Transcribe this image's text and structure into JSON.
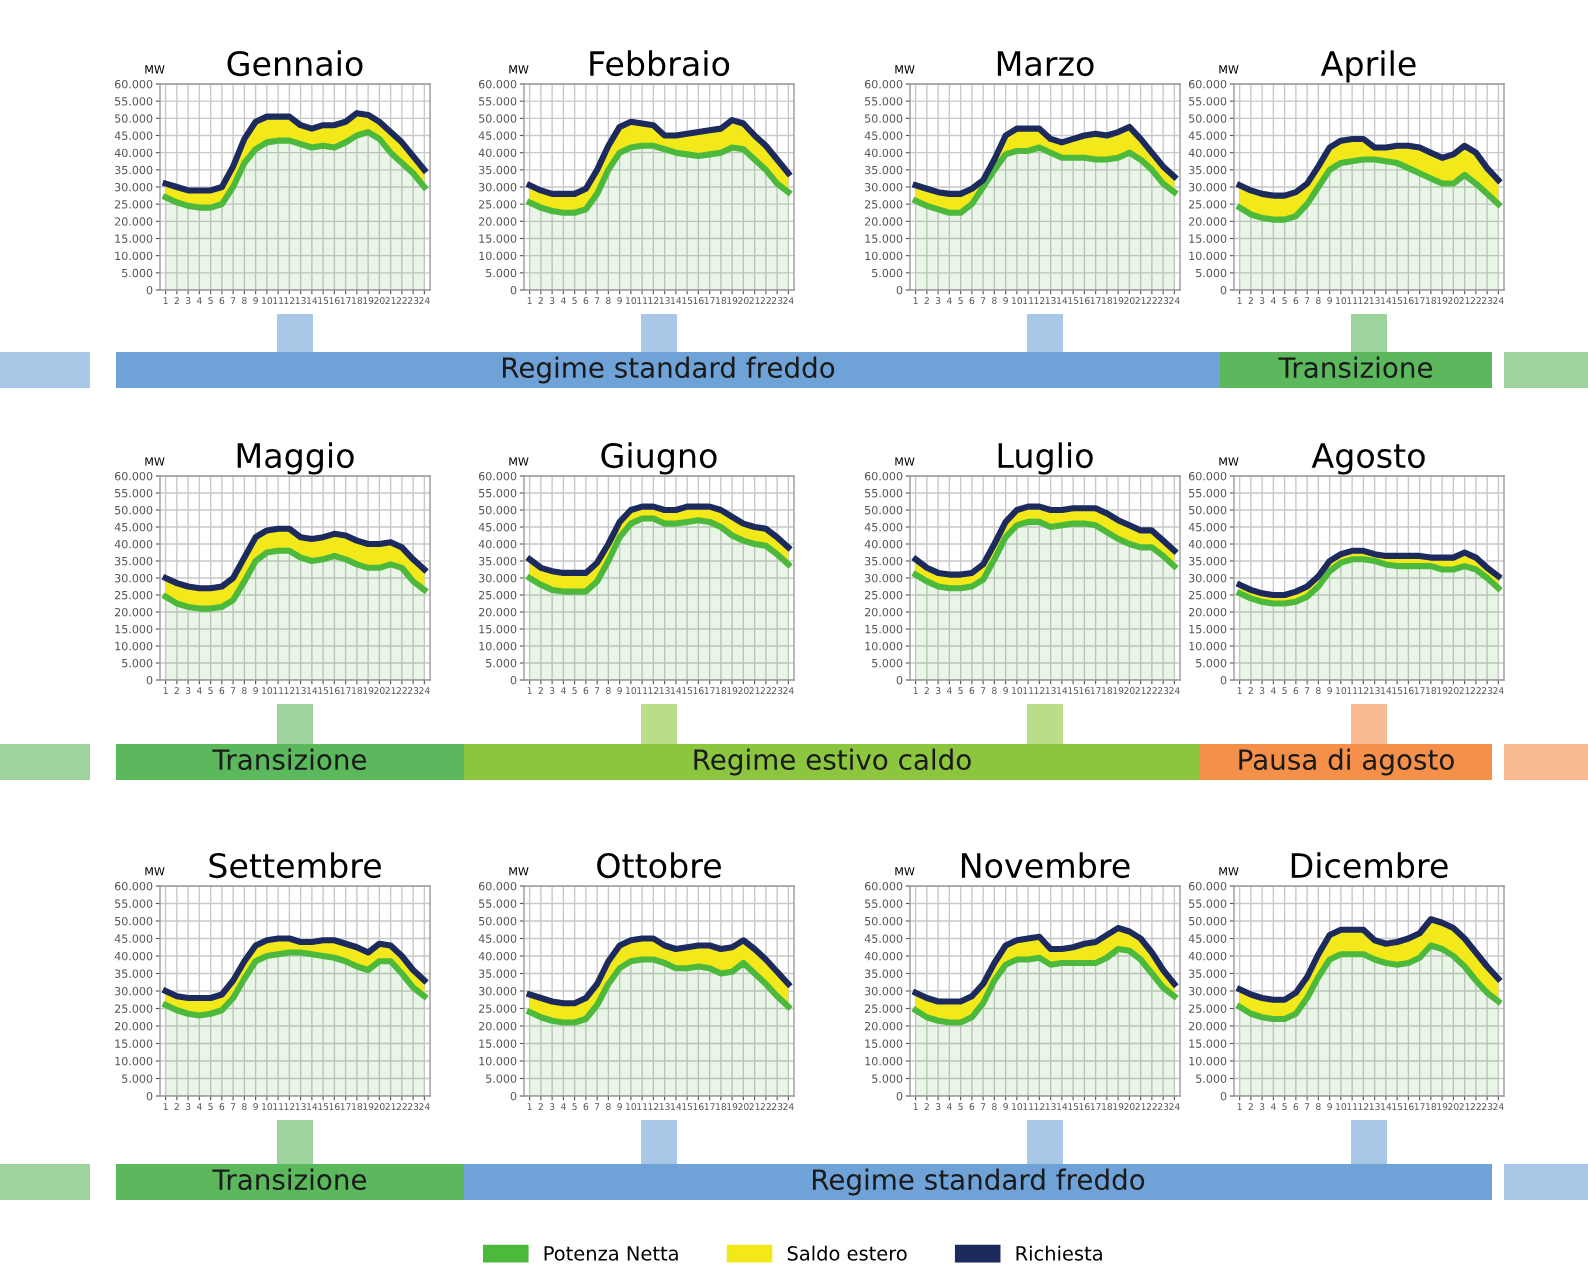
{
  "chart_data": [
    {
      "type": "area",
      "title": "Gennaio",
      "ylabel": "MW",
      "stacked": true,
      "grid": true,
      "legend": "bottom",
      "categories": [
        "1",
        "2",
        "3",
        "4",
        "5",
        "6",
        "7",
        "8",
        "9",
        "10",
        "11",
        "12",
        "13",
        "14",
        "15",
        "16",
        "17",
        "18",
        "19",
        "20",
        "21",
        "22",
        "23",
        "24"
      ],
      "ylim": [
        0,
        60000
      ],
      "yticks": [
        0,
        {
          "value": 5000,
          "label": "5.000"
        },
        {
          "value": 10000,
          "label": "10.000"
        },
        {
          "value": 15000,
          "label": "15.000"
        },
        {
          "value": 20000,
          "label": "20.000"
        },
        {
          "value": 25000,
          "label": "25.000"
        },
        {
          "value": 30000,
          "label": "30.000"
        },
        {
          "value": 35000,
          "label": "35.000"
        },
        {
          "value": 40000,
          "label": "40.000"
        },
        {
          "value": 45000,
          "label": "45.000"
        },
        {
          "value": 50000,
          "label": "50.000"
        },
        {
          "value": 55000,
          "label": "55.000"
        },
        {
          "value": 60000,
          "label": "60.000"
        }
      ],
      "series": [
        {
          "name": "Potenza Netta",
          "type": "area",
          "color": "#4cb83c",
          "values": [
            27000,
            25500,
            24500,
            24000,
            24000,
            25000,
            30000,
            37000,
            41000,
            43000,
            43500,
            43500,
            42500,
            41500,
            42000,
            41500,
            43000,
            45000,
            46000,
            44000,
            40000,
            37000,
            34000,
            30000
          ]
        },
        {
          "name": "Saldo estero",
          "type": "area",
          "color": "#f2e81a",
          "values": [
            4000,
            4500,
            4500,
            5000,
            5000,
            5000,
            6000,
            7000,
            8000,
            7500,
            7000,
            7000,
            5500,
            5500,
            6000,
            6500,
            6000,
            6500,
            5000,
            5000,
            6000,
            6000,
            5000,
            5000
          ]
        },
        {
          "name": "Richiesta",
          "type": "line",
          "color": "#1c2a5e",
          "values": [
            31000,
            30000,
            29000,
            29000,
            29000,
            30000,
            36000,
            44000,
            49000,
            50500,
            50500,
            50500,
            48000,
            47000,
            48000,
            48000,
            49000,
            51500,
            51000,
            49000,
            46000,
            43000,
            39000,
            35000
          ]
        }
      ]
    },
    {
      "type": "area",
      "title": "Febbraio",
      "ylabel": "MW",
      "stacked": true,
      "grid": true,
      "categories": [
        "1",
        "2",
        "3",
        "4",
        "5",
        "6",
        "7",
        "8",
        "9",
        "10",
        "11",
        "12",
        "13",
        "14",
        "15",
        "16",
        "17",
        "18",
        "19",
        "20",
        "21",
        "22",
        "23",
        "24"
      ],
      "ylim": [
        0,
        60000
      ],
      "yticks": [
        0,
        {
          "value": 5000,
          "label": "5.000"
        },
        {
          "value": 10000,
          "label": "10.000"
        },
        {
          "value": 15000,
          "label": "15.000"
        },
        {
          "value": 20000,
          "label": "20.000"
        },
        {
          "value": 25000,
          "label": "25.000"
        },
        {
          "value": 30000,
          "label": "30.000"
        },
        {
          "value": 35000,
          "label": "35.000"
        },
        {
          "value": 40000,
          "label": "40.000"
        },
        {
          "value": 45000,
          "label": "45.000"
        },
        {
          "value": 50000,
          "label": "50.000"
        },
        {
          "value": 55000,
          "label": "55.000"
        },
        {
          "value": 60000,
          "label": "60.000"
        }
      ],
      "series": [
        {
          "name": "Potenza Netta",
          "type": "area",
          "color": "#4cb83c",
          "values": [
            25500,
            24000,
            23000,
            22500,
            22500,
            23500,
            28000,
            35000,
            40000,
            41500,
            42000,
            42000,
            41000,
            40000,
            39500,
            39000,
            39500,
            40000,
            41500,
            41000,
            38000,
            35000,
            31000,
            28500
          ]
        },
        {
          "name": "Saldo estero",
          "type": "area",
          "color": "#f2e81a",
          "values": [
            5000,
            5000,
            5000,
            5500,
            5500,
            6000,
            7000,
            7000,
            7500,
            7500,
            6500,
            6000,
            4000,
            5000,
            6000,
            7000,
            7000,
            7000,
            8000,
            7500,
            7000,
            7000,
            7000,
            5500
          ]
        },
        {
          "name": "Richiesta",
          "type": "line",
          "color": "#1c2a5e",
          "values": [
            30500,
            29000,
            28000,
            28000,
            28000,
            29500,
            35000,
            42000,
            47500,
            49000,
            48500,
            48000,
            45000,
            45000,
            45500,
            46000,
            46500,
            47000,
            49500,
            48500,
            45000,
            42000,
            38000,
            34000
          ]
        }
      ]
    },
    {
      "type": "area",
      "title": "Marzo",
      "ylabel": "MW",
      "stacked": true,
      "grid": true,
      "categories": [
        "1",
        "2",
        "3",
        "4",
        "5",
        "6",
        "7",
        "8",
        "9",
        "10",
        "11",
        "12",
        "13",
        "14",
        "15",
        "16",
        "17",
        "18",
        "19",
        "20",
        "21",
        "22",
        "23",
        "24"
      ],
      "ylim": [
        0,
        60000
      ],
      "yticks": [
        0,
        {
          "value": 5000,
          "label": "5.000"
        },
        {
          "value": 10000,
          "label": "10.000"
        },
        {
          "value": 15000,
          "label": "15.000"
        },
        {
          "value": 20000,
          "label": "20.000"
        },
        {
          "value": 25000,
          "label": "25.000"
        },
        {
          "value": 30000,
          "label": "30.000"
        },
        {
          "value": 35000,
          "label": "35.000"
        },
        {
          "value": 40000,
          "label": "40.000"
        },
        {
          "value": 45000,
          "label": "45.000"
        },
        {
          "value": 50000,
          "label": "50.000"
        },
        {
          "value": 55000,
          "label": "55.000"
        },
        {
          "value": 60000,
          "label": "60.000"
        }
      ],
      "series": [
        {
          "name": "Potenza Netta",
          "type": "area",
          "color": "#4cb83c",
          "values": [
            26000,
            24500,
            23500,
            22500,
            22500,
            25000,
            30000,
            35000,
            39500,
            40500,
            40500,
            41500,
            40000,
            38500,
            38500,
            38500,
            38000,
            38000,
            38500,
            40000,
            38000,
            35000,
            31000,
            28500
          ]
        },
        {
          "name": "Saldo estero",
          "type": "area",
          "color": "#f2e81a",
          "values": [
            4500,
            5000,
            5000,
            5500,
            5500,
            4500,
            2000,
            3000,
            5500,
            6500,
            6500,
            5500,
            4000,
            4500,
            5500,
            6500,
            7500,
            7000,
            7500,
            7500,
            6000,
            5000,
            5000,
            4500
          ]
        },
        {
          "name": "Richiesta",
          "type": "line",
          "color": "#1c2a5e",
          "values": [
            30500,
            29500,
            28500,
            28000,
            28000,
            29500,
            32000,
            38000,
            45000,
            47000,
            47000,
            47000,
            44000,
            43000,
            44000,
            45000,
            45500,
            45000,
            46000,
            47500,
            44000,
            40000,
            36000,
            33000
          ]
        }
      ]
    },
    {
      "type": "area",
      "title": "Aprile",
      "ylabel": "MW",
      "stacked": true,
      "grid": true,
      "categories": [
        "1",
        "2",
        "3",
        "4",
        "5",
        "6",
        "7",
        "8",
        "9",
        "10",
        "11",
        "12",
        "13",
        "14",
        "15",
        "16",
        "17",
        "18",
        "19",
        "20",
        "21",
        "22",
        "23",
        "24"
      ],
      "ylim": [
        0,
        60000
      ],
      "yticks": [
        0,
        {
          "value": 5000,
          "label": "5.000"
        },
        {
          "value": 10000,
          "label": "10.000"
        },
        {
          "value": 15000,
          "label": "15.000"
        },
        {
          "value": 20000,
          "label": "20.000"
        },
        {
          "value": 25000,
          "label": "25.000"
        },
        {
          "value": 30000,
          "label": "30.000"
        },
        {
          "value": 35000,
          "label": "35.000"
        },
        {
          "value": 40000,
          "label": "40.000"
        },
        {
          "value": 45000,
          "label": "45.000"
        },
        {
          "value": 50000,
          "label": "50.000"
        },
        {
          "value": 55000,
          "label": "55.000"
        },
        {
          "value": 60000,
          "label": "60.000"
        }
      ],
      "series": [
        {
          "name": "Potenza Netta",
          "type": "area",
          "color": "#4cb83c",
          "values": [
            24000,
            22000,
            21000,
            20500,
            20500,
            21500,
            25000,
            30000,
            35000,
            37000,
            37500,
            38000,
            38000,
            37500,
            37000,
            35500,
            34000,
            32500,
            31000,
            31000,
            33500,
            31000,
            28000,
            25000
          ]
        },
        {
          "name": "Saldo estero",
          "type": "area",
          "color": "#f2e81a",
          "values": [
            6500,
            7000,
            7000,
            7000,
            7000,
            7000,
            6000,
            6000,
            6500,
            6500,
            6500,
            6000,
            3500,
            4000,
            5000,
            6500,
            7500,
            7500,
            7500,
            8500,
            8500,
            9000,
            7500,
            7000
          ]
        },
        {
          "name": "Richiesta",
          "type": "line",
          "color": "#1c2a5e",
          "values": [
            30500,
            29000,
            28000,
            27500,
            27500,
            28500,
            31000,
            36000,
            41500,
            43500,
            44000,
            44000,
            41500,
            41500,
            42000,
            42000,
            41500,
            40000,
            38500,
            39500,
            42000,
            40000,
            35500,
            32000
          ]
        }
      ]
    },
    {
      "type": "other",
      "annotations": [
        "Regime standard freddo",
        "Transizione"
      ],
      "colors": [
        "#6fa3d8",
        "#5cb85c"
      ]
    },
    {
      "type": "area",
      "title": "Maggio",
      "ylabel": "MW",
      "stacked": true,
      "grid": true,
      "categories": [
        "1",
        "2",
        "3",
        "4",
        "5",
        "6",
        "7",
        "8",
        "9",
        "10",
        "11",
        "12",
        "13",
        "14",
        "15",
        "16",
        "17",
        "18",
        "19",
        "20",
        "21",
        "22",
        "23",
        "24"
      ],
      "ylim": [
        0,
        60000
      ],
      "yticks": [
        0,
        {
          "value": 5000,
          "label": "5.000"
        },
        {
          "value": 10000,
          "label": "10.000"
        },
        {
          "value": 15000,
          "label": "15.000"
        },
        {
          "value": 20000,
          "label": "20.000"
        },
        {
          "value": 25000,
          "label": "25.000"
        },
        {
          "value": 30000,
          "label": "30.000"
        },
        {
          "value": 35000,
          "label": "35.000"
        },
        {
          "value": 40000,
          "label": "40.000"
        },
        {
          "value": 45000,
          "label": "45.000"
        },
        {
          "value": 50000,
          "label": "50.000"
        },
        {
          "value": 55000,
          "label": "55.000"
        },
        {
          "value": 60000,
          "label": "60.000"
        }
      ],
      "series": [
        {
          "name": "Potenza Netta",
          "type": "area",
          "color": "#4cb83c",
          "values": [
            24500,
            22500,
            21500,
            21000,
            21000,
            21500,
            23500,
            29000,
            35000,
            37500,
            38000,
            38000,
            36000,
            35000,
            35500,
            36500,
            35500,
            34000,
            33000,
            33000,
            34000,
            33000,
            29000,
            26500
          ]
        },
        {
          "name": "Saldo estero",
          "type": "area",
          "color": "#f2e81a",
          "values": [
            5500,
            6000,
            6000,
            6000,
            6000,
            6000,
            6500,
            7000,
            7000,
            6500,
            6500,
            6500,
            6000,
            6500,
            6500,
            6500,
            7000,
            7000,
            7000,
            7000,
            6500,
            6000,
            6500,
            6000
          ]
        },
        {
          "name": "Richiesta",
          "type": "line",
          "color": "#1c2a5e",
          "values": [
            30000,
            28500,
            27500,
            27000,
            27000,
            27500,
            30000,
            36000,
            42000,
            44000,
            44500,
            44500,
            42000,
            41500,
            42000,
            43000,
            42500,
            41000,
            40000,
            40000,
            40500,
            39000,
            35500,
            32500
          ]
        }
      ]
    },
    {
      "type": "area",
      "title": "Giugno",
      "ylabel": "MW",
      "stacked": true,
      "grid": true,
      "categories": [
        "1",
        "2",
        "3",
        "4",
        "5",
        "6",
        "7",
        "8",
        "9",
        "10",
        "11",
        "12",
        "13",
        "14",
        "15",
        "16",
        "17",
        "18",
        "19",
        "20",
        "21",
        "22",
        "23",
        "24"
      ],
      "ylim": [
        0,
        60000
      ],
      "yticks": [
        0,
        {
          "value": 5000,
          "label": "5.000"
        },
        {
          "value": 10000,
          "label": "10.000"
        },
        {
          "value": 15000,
          "label": "15.000"
        },
        {
          "value": 20000,
          "label": "20.000"
        },
        {
          "value": 25000,
          "label": "25.000"
        },
        {
          "value": 30000,
          "label": "30.000"
        },
        {
          "value": 35000,
          "label": "35.000"
        },
        {
          "value": 40000,
          "label": "40.000"
        },
        {
          "value": 45000,
          "label": "45.000"
        },
        {
          "value": 50000,
          "label": "50.000"
        },
        {
          "value": 55000,
          "label": "55.000"
        },
        {
          "value": 60000,
          "label": "60.000"
        }
      ],
      "series": [
        {
          "name": "Potenza Netta",
          "type": "area",
          "color": "#4cb83c",
          "values": [
            30000,
            28000,
            26500,
            26000,
            26000,
            26000,
            29000,
            35000,
            42000,
            46000,
            47500,
            47500,
            46000,
            46000,
            46500,
            47000,
            46500,
            45000,
            42500,
            41000,
            40000,
            39500,
            37000,
            34000
          ]
        },
        {
          "name": "Saldo estero",
          "type": "area",
          "color": "#f2e81a",
          "values": [
            5500,
            5000,
            5500,
            5500,
            5500,
            5500,
            5500,
            5000,
            4500,
            4000,
            3500,
            3500,
            4000,
            4000,
            4500,
            4000,
            4500,
            5000,
            5500,
            5000,
            5000,
            5000,
            5000,
            5000
          ]
        },
        {
          "name": "Richiesta",
          "type": "line",
          "color": "#1c2a5e",
          "values": [
            35500,
            33000,
            32000,
            31500,
            31500,
            31500,
            34500,
            40000,
            46500,
            50000,
            51000,
            51000,
            50000,
            50000,
            51000,
            51000,
            51000,
            50000,
            48000,
            46000,
            45000,
            44500,
            42000,
            39000
          ]
        }
      ]
    },
    {
      "type": "area",
      "title": "Luglio",
      "ylabel": "MW",
      "stacked": true,
      "grid": true,
      "categories": [
        "1",
        "2",
        "3",
        "4",
        "5",
        "6",
        "7",
        "8",
        "9",
        "10",
        "11",
        "12",
        "13",
        "14",
        "15",
        "16",
        "17",
        "18",
        "19",
        "20",
        "21",
        "22",
        "23",
        "24"
      ],
      "ylim": [
        0,
        60000
      ],
      "yticks": [
        0,
        {
          "value": 5000,
          "label": "5.000"
        },
        {
          "value": 10000,
          "label": "10.000"
        },
        {
          "value": 15000,
          "label": "15.000"
        },
        {
          "value": 20000,
          "label": "20.000"
        },
        {
          "value": 25000,
          "label": "25.000"
        },
        {
          "value": 30000,
          "label": "30.000"
        },
        {
          "value": 35000,
          "label": "35.000"
        },
        {
          "value": 40000,
          "label": "40.000"
        },
        {
          "value": 45000,
          "label": "45.000"
        },
        {
          "value": 50000,
          "label": "50.000"
        },
        {
          "value": 55000,
          "label": "55.000"
        },
        {
          "value": 60000,
          "label": "60.000"
        }
      ],
      "series": [
        {
          "name": "Potenza Netta",
          "type": "area",
          "color": "#4cb83c",
          "values": [
            31000,
            29000,
            27500,
            27000,
            27000,
            27500,
            29500,
            35500,
            42000,
            45500,
            46500,
            46500,
            45000,
            45500,
            46000,
            46000,
            45500,
            43500,
            41500,
            40000,
            39000,
            39000,
            36500,
            33500
          ]
        },
        {
          "name": "Saldo estero",
          "type": "area",
          "color": "#f2e81a",
          "values": [
            4500,
            4000,
            4000,
            4000,
            4000,
            4000,
            4500,
            4500,
            4500,
            4500,
            4500,
            4500,
            5000,
            4500,
            4500,
            4500,
            5000,
            5500,
            5500,
            5500,
            5000,
            5000,
            4500,
            4500
          ]
        },
        {
          "name": "Richiesta",
          "type": "line",
          "color": "#1c2a5e",
          "values": [
            35500,
            33000,
            31500,
            31000,
            31000,
            31500,
            34000,
            40000,
            46500,
            50000,
            51000,
            51000,
            50000,
            50000,
            50500,
            50500,
            50500,
            49000,
            47000,
            45500,
            44000,
            44000,
            41000,
            38000
          ]
        }
      ]
    },
    {
      "type": "area",
      "title": "Agosto",
      "ylabel": "MW",
      "stacked": true,
      "grid": true,
      "categories": [
        "1",
        "2",
        "3",
        "4",
        "5",
        "6",
        "7",
        "8",
        "9",
        "10",
        "11",
        "12",
        "13",
        "14",
        "15",
        "16",
        "17",
        "18",
        "19",
        "20",
        "21",
        "22",
        "23",
        "24"
      ],
      "ylim": [
        0,
        60000
      ],
      "yticks": [
        0,
        {
          "value": 5000,
          "label": "5.000"
        },
        {
          "value": 10000,
          "label": "10.000"
        },
        {
          "value": 15000,
          "label": "15.000"
        },
        {
          "value": 20000,
          "label": "20.000"
        },
        {
          "value": 25000,
          "label": "25.000"
        },
        {
          "value": 30000,
          "label": "30.000"
        },
        {
          "value": 35000,
          "label": "35.000"
        },
        {
          "value": 40000,
          "label": "40.000"
        },
        {
          "value": 45000,
          "label": "45.000"
        },
        {
          "value": 50000,
          "label": "50.000"
        },
        {
          "value": 55000,
          "label": "55.000"
        },
        {
          "value": 60000,
          "label": "60.000"
        }
      ],
      "series": [
        {
          "name": "Potenza Netta",
          "type": "area",
          "color": "#4cb83c",
          "values": [
            25500,
            24000,
            23000,
            22500,
            22500,
            23000,
            24500,
            27500,
            32000,
            34500,
            35500,
            35500,
            35000,
            34000,
            33500,
            33500,
            33500,
            33500,
            32500,
            32500,
            33500,
            32500,
            30000,
            27000
          ]
        },
        {
          "name": "Saldo estero",
          "type": "area",
          "color": "#f2e81a",
          "values": [
            2500,
            2500,
            2500,
            2500,
            2500,
            3000,
            3000,
            3000,
            3000,
            2500,
            2500,
            2500,
            2000,
            2500,
            3000,
            3000,
            3000,
            2500,
            3500,
            3500,
            4000,
            3500,
            3000,
            3500
          ]
        },
        {
          "name": "Richiesta",
          "type": "line",
          "color": "#1c2a5e",
          "values": [
            28000,
            26500,
            25500,
            25000,
            25000,
            26000,
            27500,
            30500,
            35000,
            37000,
            38000,
            38000,
            37000,
            36500,
            36500,
            36500,
            36500,
            36000,
            36000,
            36000,
            37500,
            36000,
            33000,
            30500
          ]
        }
      ]
    },
    {
      "type": "other",
      "annotations": [
        "Transizione",
        "Regime estivo caldo",
        "Pausa di agosto"
      ],
      "colors": [
        "#5cb85c",
        "#8cc63f",
        "#f5904a"
      ]
    },
    {
      "type": "area",
      "title": "Settembre",
      "ylabel": "MW",
      "stacked": true,
      "grid": true,
      "categories": [
        "1",
        "2",
        "3",
        "4",
        "5",
        "6",
        "7",
        "8",
        "9",
        "10",
        "11",
        "12",
        "13",
        "14",
        "15",
        "16",
        "17",
        "18",
        "19",
        "20",
        "21",
        "22",
        "23",
        "24"
      ],
      "ylim": [
        0,
        60000
      ],
      "yticks": [
        0,
        {
          "value": 5000,
          "label": "5.000"
        },
        {
          "value": 10000,
          "label": "10.000"
        },
        {
          "value": 15000,
          "label": "15.000"
        },
        {
          "value": 20000,
          "label": "20.000"
        },
        {
          "value": 25000,
          "label": "25.000"
        },
        {
          "value": 30000,
          "label": "30.000"
        },
        {
          "value": 35000,
          "label": "35.000"
        },
        {
          "value": 40000,
          "label": "40.000"
        },
        {
          "value": 45000,
          "label": "45.000"
        },
        {
          "value": 50000,
          "label": "50.000"
        },
        {
          "value": 55000,
          "label": "55.000"
        },
        {
          "value": 60000,
          "label": "60.000"
        }
      ],
      "series": [
        {
          "name": "Potenza Netta",
          "type": "area",
          "color": "#4cb83c",
          "values": [
            26000,
            24500,
            23500,
            23000,
            23500,
            24500,
            28000,
            33500,
            38500,
            40000,
            40500,
            41000,
            41000,
            40500,
            40000,
            39500,
            38500,
            37000,
            36000,
            38500,
            38500,
            35000,
            31000,
            28500
          ]
        },
        {
          "name": "Saldo estero",
          "type": "area",
          "color": "#f2e81a",
          "values": [
            4000,
            4000,
            4500,
            5000,
            4500,
            4500,
            5000,
            5000,
            4500,
            4500,
            4500,
            4000,
            3000,
            3500,
            4500,
            5000,
            5000,
            5500,
            5000,
            5000,
            4500,
            5000,
            5000,
            4500
          ]
        },
        {
          "name": "Richiesta",
          "type": "line",
          "color": "#1c2a5e",
          "values": [
            30000,
            28500,
            28000,
            28000,
            28000,
            29000,
            33000,
            38500,
            43000,
            44500,
            45000,
            45000,
            44000,
            44000,
            44500,
            44500,
            43500,
            42500,
            41000,
            43500,
            43000,
            40000,
            36000,
            33000
          ]
        }
      ]
    },
    {
      "type": "area",
      "title": "Ottobre",
      "ylabel": "MW",
      "stacked": true,
      "grid": true,
      "categories": [
        "1",
        "2",
        "3",
        "4",
        "5",
        "6",
        "7",
        "8",
        "9",
        "10",
        "11",
        "12",
        "13",
        "14",
        "15",
        "16",
        "17",
        "18",
        "19",
        "20",
        "21",
        "22",
        "23",
        "24"
      ],
      "ylim": [
        0,
        60000
      ],
      "yticks": [
        0,
        {
          "value": 5000,
          "label": "5.000"
        },
        {
          "value": 10000,
          "label": "10.000"
        },
        {
          "value": 15000,
          "label": "15.000"
        },
        {
          "value": 20000,
          "label": "20.000"
        },
        {
          "value": 25000,
          "label": "25.000"
        },
        {
          "value": 30000,
          "label": "30.000"
        },
        {
          "value": 35000,
          "label": "35.000"
        },
        {
          "value": 40000,
          "label": "40.000"
        },
        {
          "value": 45000,
          "label": "45.000"
        },
        {
          "value": 50000,
          "label": "50.000"
        },
        {
          "value": 55000,
          "label": "55.000"
        },
        {
          "value": 60000,
          "label": "60.000"
        }
      ],
      "series": [
        {
          "name": "Potenza Netta",
          "type": "area",
          "color": "#4cb83c",
          "values": [
            24000,
            22500,
            21500,
            21000,
            21000,
            22000,
            26000,
            32000,
            36500,
            38500,
            39000,
            39000,
            38000,
            36500,
            36500,
            37000,
            36500,
            35000,
            35500,
            38000,
            35000,
            32000,
            28500,
            25500
          ]
        },
        {
          "name": "Saldo estero",
          "type": "area",
          "color": "#f2e81a",
          "values": [
            5000,
            5500,
            5500,
            5500,
            5500,
            6000,
            6000,
            6500,
            6500,
            6000,
            6000,
            6000,
            5000,
            5500,
            6000,
            6000,
            6500,
            7000,
            7000,
            6500,
            7000,
            7000,
            7000,
            6500
          ]
        },
        {
          "name": "Richiesta",
          "type": "line",
          "color": "#1c2a5e",
          "values": [
            29000,
            28000,
            27000,
            26500,
            26500,
            28000,
            32000,
            38500,
            43000,
            44500,
            45000,
            45000,
            43000,
            42000,
            42500,
            43000,
            43000,
            42000,
            42500,
            44500,
            42000,
            39000,
            35500,
            32000
          ]
        }
      ]
    },
    {
      "type": "area",
      "title": "Novembre",
      "ylabel": "MW",
      "stacked": true,
      "grid": true,
      "categories": [
        "1",
        "2",
        "3",
        "4",
        "5",
        "6",
        "7",
        "8",
        "9",
        "10",
        "11",
        "12",
        "13",
        "14",
        "15",
        "16",
        "17",
        "18",
        "19",
        "20",
        "21",
        "22",
        "23",
        "24"
      ],
      "ylim": [
        0,
        60000
      ],
      "yticks": [
        0,
        {
          "value": 5000,
          "label": "5.000"
        },
        {
          "value": 10000,
          "label": "10.000"
        },
        {
          "value": 15000,
          "label": "15.000"
        },
        {
          "value": 20000,
          "label": "20.000"
        },
        {
          "value": 25000,
          "label": "25.000"
        },
        {
          "value": 30000,
          "label": "30.000"
        },
        {
          "value": 35000,
          "label": "35.000"
        },
        {
          "value": 40000,
          "label": "40.000"
        },
        {
          "value": 45000,
          "label": "45.000"
        },
        {
          "value": 50000,
          "label": "50.000"
        },
        {
          "value": 55000,
          "label": "55.000"
        },
        {
          "value": 60000,
          "label": "60.000"
        }
      ],
      "series": [
        {
          "name": "Potenza Netta",
          "type": "area",
          "color": "#4cb83c",
          "values": [
            24500,
            22500,
            21500,
            21000,
            21000,
            22500,
            26500,
            33000,
            37500,
            39000,
            39000,
            39500,
            37500,
            38000,
            38000,
            38000,
            38000,
            39500,
            42000,
            41500,
            39000,
            35000,
            31000,
            28500
          ]
        },
        {
          "name": "Saldo estero",
          "type": "area",
          "color": "#f2e81a",
          "values": [
            5000,
            5500,
            5500,
            6000,
            6000,
            6000,
            5500,
            5000,
            5500,
            5500,
            6000,
            6000,
            4500,
            4000,
            4500,
            5500,
            6000,
            6500,
            6000,
            5500,
            6000,
            6000,
            5000,
            3500
          ]
        },
        {
          "name": "Richiesta",
          "type": "line",
          "color": "#1c2a5e",
          "values": [
            29500,
            28000,
            27000,
            27000,
            27000,
            28500,
            32000,
            38000,
            43000,
            44500,
            45000,
            45500,
            42000,
            42000,
            42500,
            43500,
            44000,
            46000,
            48000,
            47000,
            45000,
            41000,
            36000,
            32000
          ]
        }
      ]
    },
    {
      "type": "area",
      "title": "Dicembre",
      "ylabel": "MW",
      "stacked": true,
      "grid": true,
      "categories": [
        "1",
        "2",
        "3",
        "4",
        "5",
        "6",
        "7",
        "8",
        "9",
        "10",
        "11",
        "12",
        "13",
        "14",
        "15",
        "16",
        "17",
        "18",
        "19",
        "20",
        "21",
        "22",
        "23",
        "24"
      ],
      "ylim": [
        0,
        60000
      ],
      "yticks": [
        0,
        {
          "value": 5000,
          "label": "5.000"
        },
        {
          "value": 10000,
          "label": "10.000"
        },
        {
          "value": 15000,
          "label": "15.000"
        },
        {
          "value": 20000,
          "label": "20.000"
        },
        {
          "value": 25000,
          "label": "25.000"
        },
        {
          "value": 30000,
          "label": "30.000"
        },
        {
          "value": 35000,
          "label": "35.000"
        },
        {
          "value": 40000,
          "label": "40.000"
        },
        {
          "value": 45000,
          "label": "45.000"
        },
        {
          "value": 50000,
          "label": "50.000"
        },
        {
          "value": 55000,
          "label": "55.000"
        },
        {
          "value": 60000,
          "label": "60.000"
        }
      ],
      "series": [
        {
          "name": "Potenza Netta",
          "type": "area",
          "color": "#4cb83c",
          "values": [
            25500,
            23500,
            22500,
            22000,
            22000,
            23500,
            28000,
            34000,
            39000,
            40500,
            40500,
            40500,
            39000,
            38000,
            37500,
            38000,
            39500,
            43000,
            42000,
            40000,
            37000,
            33000,
            29500,
            27000
          ]
        },
        {
          "name": "Saldo estero",
          "type": "area",
          "color": "#f2e81a",
          "values": [
            5000,
            5500,
            5500,
            5500,
            5500,
            6000,
            6000,
            6500,
            7000,
            7000,
            7000,
            7000,
            5500,
            5500,
            6500,
            7000,
            7000,
            7500,
            7500,
            8000,
            8000,
            8000,
            7500,
            6500
          ]
        },
        {
          "name": "Richiesta",
          "type": "line",
          "color": "#1c2a5e",
          "values": [
            30500,
            29000,
            28000,
            27500,
            27500,
            29500,
            34000,
            40500,
            46000,
            47500,
            47500,
            47500,
            44500,
            43500,
            44000,
            45000,
            46500,
            50500,
            49500,
            48000,
            45000,
            41000,
            37000,
            33500
          ]
        }
      ]
    },
    {
      "type": "other",
      "annotations": [
        "Transizione",
        "Regime standard freddo"
      ],
      "colors": [
        "#5cb85c",
        "#6fa3d8"
      ]
    }
  ]
}
